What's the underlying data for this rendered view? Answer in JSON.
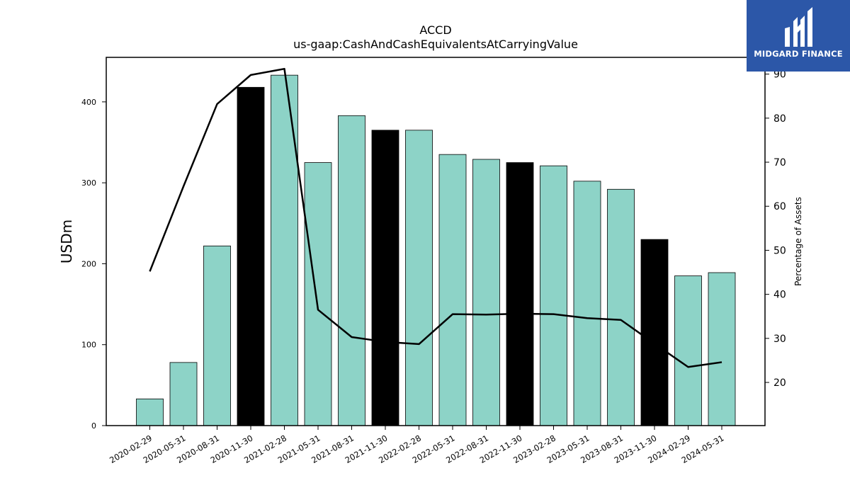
{
  "brand": {
    "name": "MIDGARD FINANCE",
    "bg_color": "#2c57a8"
  },
  "chart_data": {
    "type": "bar",
    "title": "ACCD",
    "subtitle": "us-gaap:CashAndCashEquivalentsAtCarryingValue",
    "ylabel": "USDm",
    "y2label": "Percentage of Assets",
    "categories": [
      "2020-02-29",
      "2020-05-31",
      "2020-08-31",
      "2020-11-30",
      "2021-02-28",
      "2021-05-31",
      "2021-08-31",
      "2021-11-30",
      "2022-02-28",
      "2022-05-31",
      "2022-08-31",
      "2022-11-30",
      "2023-02-28",
      "2023-05-31",
      "2023-08-31",
      "2023-11-30",
      "2024-02-29",
      "2024-05-31"
    ],
    "values": [
      33,
      78,
      222,
      418,
      433,
      325,
      383,
      365,
      365,
      335,
      329,
      325,
      321,
      302,
      292,
      230,
      185,
      189
    ],
    "highlighted": [
      false,
      false,
      false,
      true,
      false,
      false,
      false,
      true,
      false,
      false,
      false,
      true,
      false,
      false,
      false,
      true,
      false,
      false
    ],
    "line_values": [
      45.2,
      64.5,
      83.2,
      89.8,
      91.2,
      36.5,
      30.3,
      29.2,
      28.7,
      35.5,
      35.4,
      35.6,
      35.5,
      34.6,
      34.2,
      28.8,
      23.5,
      24.6
    ],
    "ylim": [
      0,
      455
    ],
    "y2lim": [
      10.2,
      93.8
    ],
    "yticks": [
      0,
      100,
      200,
      300,
      400
    ],
    "y2ticks": [
      20,
      30,
      40,
      50,
      60,
      70,
      80,
      90
    ],
    "colors": {
      "bar": "#8dd3c7",
      "bar_highlight": "#000000",
      "line": "#000000"
    }
  }
}
